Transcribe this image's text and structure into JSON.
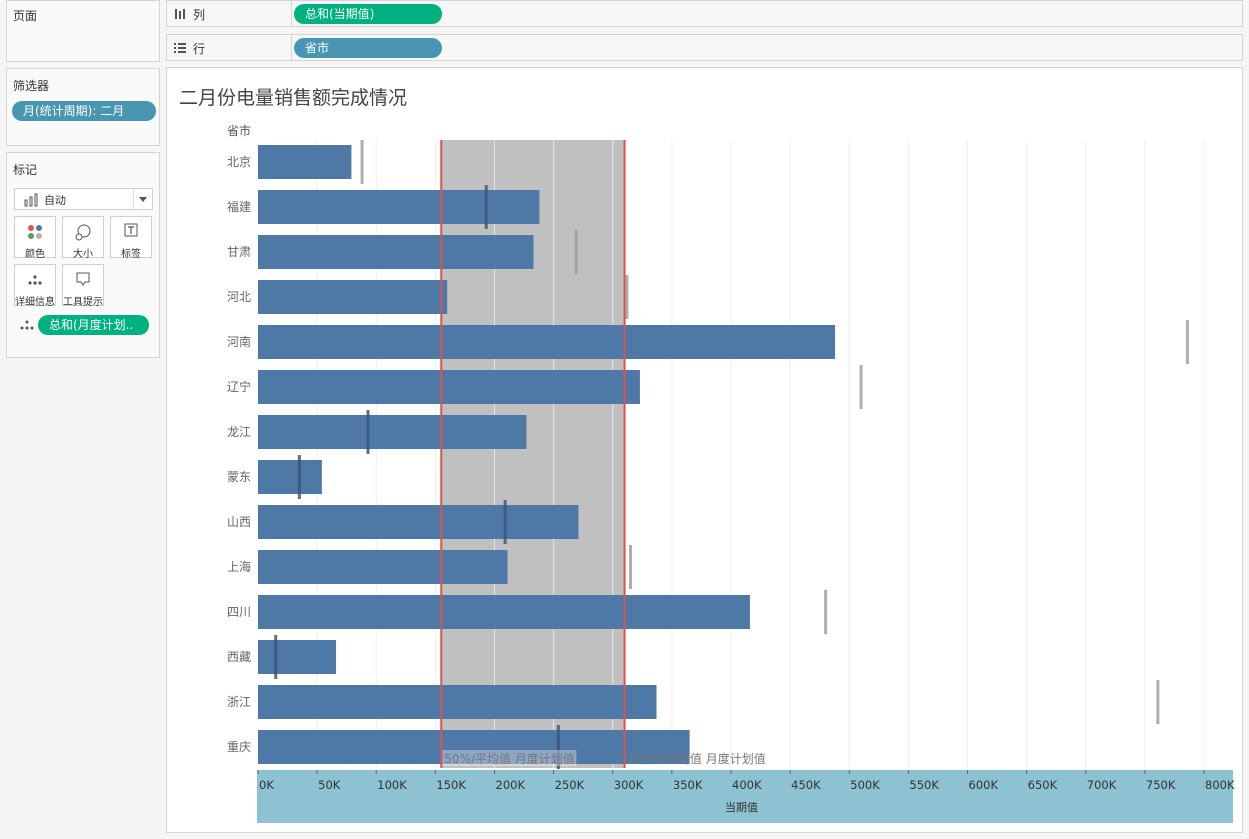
{
  "sidebar": {
    "pages_title": "页面",
    "filters_title": "筛选器",
    "filter_pill": "月(统计周期): 二月",
    "marks_title": "标记",
    "mark_type": "自动",
    "mark_buttons": [
      {
        "label": "颜色",
        "icon": "color-dots-icon"
      },
      {
        "label": "大小",
        "icon": "size-icon"
      },
      {
        "label": "标签",
        "icon": "label-icon"
      },
      {
        "label": "详细信息",
        "icon": "detail-icon"
      },
      {
        "label": "工具提示",
        "icon": "tooltip-icon"
      }
    ],
    "detail_pill": "总和(月度计划.."
  },
  "shelves": {
    "columns_label": "列",
    "columns_pill": "总和(当期值)",
    "rows_label": "行",
    "rows_pill": "省市"
  },
  "colors": {
    "bar": "#4e79a7",
    "band": "#c0c0c0",
    "refline": "#d9534f",
    "axis_bg": "#8cc2d2",
    "green_pill": "#00b180",
    "blue_pill": "#4996b2"
  },
  "chart_data": {
    "type": "bar",
    "orientation": "horizontal",
    "title": "二月份电量销售额完成情况",
    "row_header": "省市",
    "xlabel": "当期值",
    "xlim": [
      0,
      825000
    ],
    "xticks": [
      0,
      50000,
      100000,
      150000,
      200000,
      250000,
      300000,
      350000,
      400000,
      450000,
      500000,
      550000,
      600000,
      650000,
      700000,
      750000,
      800000
    ],
    "xtick_labels": [
      "0K",
      "50K",
      "100K",
      "150K",
      "200K",
      "250K",
      "300K",
      "350K",
      "400K",
      "450K",
      "500K",
      "550K",
      "600K",
      "650K",
      "700K",
      "750K",
      "800K"
    ],
    "categories": [
      "北京",
      "福建",
      "甘肃",
      "河北",
      "河南",
      "辽宁",
      "龙江",
      "蒙东",
      "山西",
      "上海",
      "四川",
      "西藏",
      "浙江",
      "重庆"
    ],
    "values": [
      79000,
      238000,
      233000,
      160000,
      488000,
      323000,
      227000,
      54000,
      271000,
      211000,
      416000,
      66000,
      337000,
      365000
    ],
    "reference_values": [
      88000,
      193000,
      269000,
      312000,
      786000,
      510000,
      93000,
      35000,
      209000,
      315000,
      480000,
      15000,
      761000,
      254000
    ],
    "band": {
      "low": 155000,
      "high": 310000,
      "low_label": "50%/平均值 月度计划值",
      "high_label": "100%/平均值 月度计划值",
      "inner_gridlines": [
        200000,
        250000,
        300000
      ]
    }
  }
}
